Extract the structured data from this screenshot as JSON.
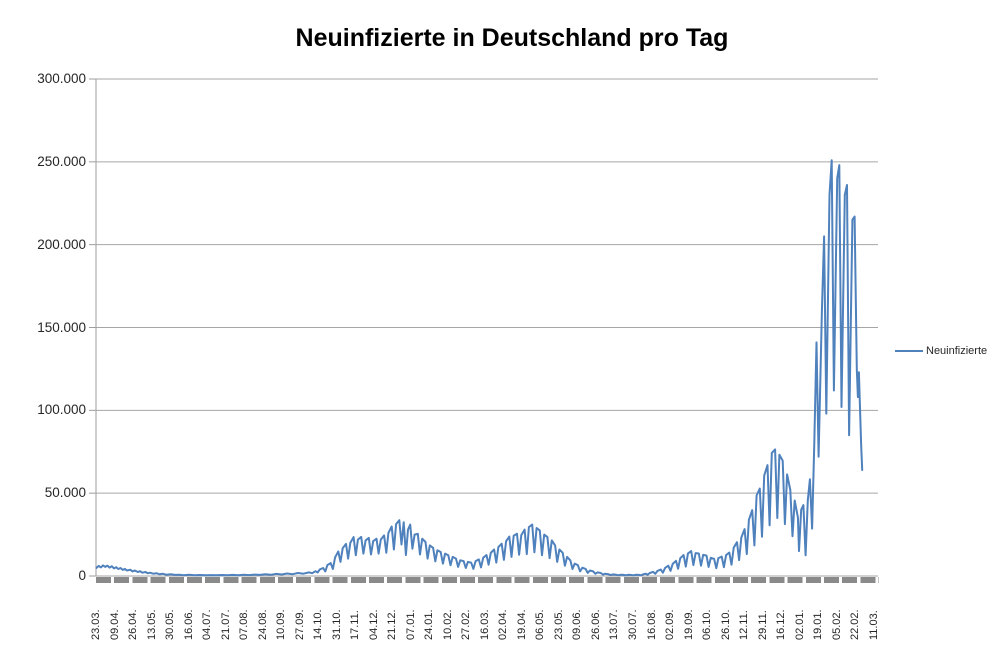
{
  "chart_data": {
    "type": "line",
    "title": "Neuinfizierte in Deutschland pro Tag",
    "legend": {
      "position": "right",
      "entries": [
        {
          "label": "Neuinfizierte",
          "color": "#4F81BD"
        }
      ]
    },
    "grid": "horizontal-only",
    "y_axis": {
      "min": 0,
      "max": 300000,
      "step": 50000,
      "tick_labels": [
        "0",
        "50.000",
        "100.000",
        "150.000",
        "200.000",
        "250.000",
        "300.000"
      ]
    },
    "x_axis": {
      "categories_total": 718,
      "label_every_n_categories": 17,
      "tick_labels": [
        "23.03.",
        "09.04.",
        "26.04.",
        "13.05.",
        "30.05.",
        "16.06.",
        "04.07.",
        "21.07.",
        "07.08.",
        "24.08.",
        "10.09.",
        "27.09.",
        "14.10.",
        "31.10.",
        "17.11.",
        "04.12.",
        "21.12.",
        "07.01.",
        "24.01.",
        "10.02.",
        "27.02.",
        "16.03.",
        "02.04.",
        "19.04.",
        "06.05.",
        "23.05.",
        "09.06.",
        "26.06.",
        "13.07.",
        "30.07.",
        "16.08.",
        "02.09.",
        "19.09.",
        "06.10.",
        "26.10.",
        "12.11.",
        "29.11.",
        "16.12.",
        "02.01.",
        "19.01.",
        "05.02.",
        "22.02.",
        "11.03."
      ]
    },
    "series": [
      {
        "name": "Neuinfizierte",
        "color": "#4F81BD",
        "points": [
          [
            0,
            4900
          ],
          [
            2,
            6100
          ],
          [
            4,
            5200
          ],
          [
            6,
            6400
          ],
          [
            8,
            5500
          ],
          [
            10,
            6300
          ],
          [
            12,
            5100
          ],
          [
            14,
            5900
          ],
          [
            16,
            4600
          ],
          [
            18,
            5300
          ],
          [
            20,
            4200
          ],
          [
            22,
            4800
          ],
          [
            24,
            3700
          ],
          [
            26,
            4300
          ],
          [
            28,
            3300
          ],
          [
            31,
            3800
          ],
          [
            33,
            2800
          ],
          [
            35,
            3300
          ],
          [
            38,
            2400
          ],
          [
            40,
            2900
          ],
          [
            42,
            2000
          ],
          [
            45,
            2400
          ],
          [
            47,
            1600
          ],
          [
            49,
            2000
          ],
          [
            52,
            1400
          ],
          [
            55,
            1700
          ],
          [
            58,
            1000
          ],
          [
            61,
            1300
          ],
          [
            64,
            800
          ],
          [
            68,
            1000
          ],
          [
            72,
            650
          ],
          [
            76,
            800
          ],
          [
            80,
            500
          ],
          [
            85,
            700
          ],
          [
            90,
            450
          ],
          [
            95,
            600
          ],
          [
            100,
            400
          ],
          [
            105,
            550
          ],
          [
            110,
            420
          ],
          [
            115,
            600
          ],
          [
            120,
            450
          ],
          [
            125,
            650
          ],
          [
            130,
            500
          ],
          [
            135,
            750
          ],
          [
            140,
            550
          ],
          [
            145,
            850
          ],
          [
            150,
            650
          ],
          [
            155,
            1000
          ],
          [
            160,
            750
          ],
          [
            165,
            1250
          ],
          [
            170,
            900
          ],
          [
            175,
            1500
          ],
          [
            180,
            1100
          ],
          [
            185,
            1800
          ],
          [
            190,
            1400
          ],
          [
            195,
            2200
          ],
          [
            198,
            1700
          ],
          [
            201,
            2900
          ],
          [
            203,
            2100
          ],
          [
            205,
            4000
          ],
          [
            208,
            4800
          ],
          [
            210,
            2800
          ],
          [
            212,
            6600
          ],
          [
            215,
            7800
          ],
          [
            217,
            4200
          ],
          [
            219,
            11300
          ],
          [
            222,
            14800
          ],
          [
            224,
            8500
          ],
          [
            226,
            16800
          ],
          [
            229,
            19400
          ],
          [
            231,
            10500
          ],
          [
            233,
            20000
          ],
          [
            236,
            23500
          ],
          [
            238,
            12500
          ],
          [
            240,
            22000
          ],
          [
            243,
            23600
          ],
          [
            245,
            13500
          ],
          [
            247,
            21500
          ],
          [
            250,
            23000
          ],
          [
            252,
            13000
          ],
          [
            254,
            21000
          ],
          [
            257,
            22500
          ],
          [
            259,
            13500
          ],
          [
            261,
            22000
          ],
          [
            264,
            24500
          ],
          [
            266,
            14000
          ],
          [
            268,
            26000
          ],
          [
            271,
            29900
          ],
          [
            273,
            16000
          ],
          [
            275,
            31300
          ],
          [
            278,
            33700
          ],
          [
            280,
            19000
          ],
          [
            282,
            32500
          ],
          [
            284,
            12700
          ],
          [
            286,
            28000
          ],
          [
            288,
            31000
          ],
          [
            290,
            16500
          ],
          [
            292,
            25000
          ],
          [
            295,
            25500
          ],
          [
            297,
            13000
          ],
          [
            299,
            22500
          ],
          [
            302,
            20500
          ],
          [
            304,
            10500
          ],
          [
            306,
            18500
          ],
          [
            309,
            17000
          ],
          [
            311,
            8800
          ],
          [
            313,
            15500
          ],
          [
            316,
            14500
          ],
          [
            318,
            7500
          ],
          [
            320,
            13500
          ],
          [
            323,
            12500
          ],
          [
            325,
            6500
          ],
          [
            327,
            11500
          ],
          [
            330,
            10500
          ],
          [
            332,
            5500
          ],
          [
            334,
            9500
          ],
          [
            337,
            9000
          ],
          [
            339,
            4800
          ],
          [
            341,
            8500
          ],
          [
            344,
            8000
          ],
          [
            346,
            4300
          ],
          [
            348,
            9000
          ],
          [
            351,
            10000
          ],
          [
            353,
            5200
          ],
          [
            355,
            11000
          ],
          [
            358,
            12700
          ],
          [
            360,
            6800
          ],
          [
            362,
            14000
          ],
          [
            365,
            16000
          ],
          [
            367,
            8100
          ],
          [
            369,
            17500
          ],
          [
            372,
            19500
          ],
          [
            374,
            9700
          ],
          [
            376,
            21000
          ],
          [
            379,
            23800
          ],
          [
            381,
            11500
          ],
          [
            383,
            24300
          ],
          [
            386,
            25500
          ],
          [
            388,
            12800
          ],
          [
            390,
            24700
          ],
          [
            393,
            28000
          ],
          [
            395,
            13200
          ],
          [
            397,
            29500
          ],
          [
            400,
            31100
          ],
          [
            402,
            14300
          ],
          [
            404,
            29000
          ],
          [
            407,
            27500
          ],
          [
            409,
            12500
          ],
          [
            411,
            25000
          ],
          [
            414,
            23500
          ],
          [
            416,
            10800
          ],
          [
            418,
            21500
          ],
          [
            421,
            18500
          ],
          [
            423,
            8500
          ],
          [
            425,
            16000
          ],
          [
            428,
            14000
          ],
          [
            430,
            6200
          ],
          [
            432,
            11500
          ],
          [
            435,
            9500
          ],
          [
            437,
            4200
          ],
          [
            439,
            7500
          ],
          [
            442,
            6500
          ],
          [
            444,
            2800
          ],
          [
            446,
            5000
          ],
          [
            449,
            4300
          ],
          [
            451,
            1900
          ],
          [
            453,
            3300
          ],
          [
            456,
            2800
          ],
          [
            458,
            1300
          ],
          [
            460,
            2200
          ],
          [
            463,
            1800
          ],
          [
            465,
            850
          ],
          [
            467,
            1400
          ],
          [
            470,
            1100
          ],
          [
            472,
            550
          ],
          [
            474,
            950
          ],
          [
            477,
            800
          ],
          [
            479,
            400
          ],
          [
            481,
            750
          ],
          [
            484,
            650
          ],
          [
            486,
            350
          ],
          [
            488,
            700
          ],
          [
            491,
            600
          ],
          [
            493,
            350
          ],
          [
            495,
            700
          ],
          [
            498,
            650
          ],
          [
            500,
            400
          ],
          [
            502,
            1000
          ],
          [
            504,
            1400
          ],
          [
            506,
            800
          ],
          [
            508,
            1800
          ],
          [
            511,
            2500
          ],
          [
            513,
            1300
          ],
          [
            515,
            3100
          ],
          [
            518,
            3900
          ],
          [
            520,
            2000
          ],
          [
            522,
            4900
          ],
          [
            525,
            6200
          ],
          [
            527,
            3100
          ],
          [
            529,
            7300
          ],
          [
            532,
            9200
          ],
          [
            534,
            4400
          ],
          [
            536,
            10800
          ],
          [
            539,
            12600
          ],
          [
            541,
            5700
          ],
          [
            543,
            13500
          ],
          [
            546,
            15000
          ],
          [
            548,
            6600
          ],
          [
            550,
            13800
          ],
          [
            553,
            13600
          ],
          [
            555,
            6200
          ],
          [
            557,
            12800
          ],
          [
            560,
            12300
          ],
          [
            562,
            5500
          ],
          [
            564,
            11000
          ],
          [
            567,
            10400
          ],
          [
            569,
            4700
          ],
          [
            571,
            10800
          ],
          [
            574,
            11700
          ],
          [
            576,
            5300
          ],
          [
            578,
            12600
          ],
          [
            581,
            14200
          ],
          [
            583,
            6800
          ],
          [
            585,
            17100
          ],
          [
            588,
            20400
          ],
          [
            590,
            9600
          ],
          [
            592,
            23200
          ],
          [
            595,
            28300
          ],
          [
            597,
            13200
          ],
          [
            599,
            33900
          ],
          [
            602,
            39700
          ],
          [
            604,
            18500
          ],
          [
            606,
            48600
          ],
          [
            609,
            52800
          ],
          [
            611,
            23700
          ],
          [
            613,
            60600
          ],
          [
            616,
            66900
          ],
          [
            618,
            30600
          ],
          [
            620,
            74300
          ],
          [
            623,
            76400
          ],
          [
            625,
            35000
          ],
          [
            627,
            73200
          ],
          [
            630,
            69600
          ],
          [
            632,
            31300
          ],
          [
            634,
            61300
          ],
          [
            637,
            52000
          ],
          [
            639,
            24000
          ],
          [
            641,
            45600
          ],
          [
            644,
            35400
          ],
          [
            645,
            15000
          ],
          [
            647,
            40000
          ],
          [
            649,
            42800
          ],
          [
            651,
            12500
          ],
          [
            653,
            45700
          ],
          [
            655,
            58400
          ],
          [
            657,
            28600
          ],
          [
            659,
            80400
          ],
          [
            661,
            141000
          ],
          [
            663,
            72000
          ],
          [
            666,
            160000
          ],
          [
            668,
            205000
          ],
          [
            670,
            98000
          ],
          [
            673,
            230000
          ],
          [
            675,
            251000
          ],
          [
            677,
            112000
          ],
          [
            680,
            240000
          ],
          [
            682,
            248000
          ],
          [
            684,
            102000
          ],
          [
            687,
            230000
          ],
          [
            689,
            236000
          ],
          [
            691,
            85000
          ],
          [
            694,
            215000
          ],
          [
            696,
            217000
          ],
          [
            698,
            125000
          ],
          [
            699,
            108000
          ],
          [
            700,
            123000
          ],
          [
            702,
            80000
          ],
          [
            703,
            64000
          ]
        ]
      }
    ],
    "colors": {
      "series": "#4F81BD",
      "gridline": "#A6A6A6",
      "axis": "#9E9E9E",
      "tick_band": "#8A8A8A",
      "axis_text": "#262626",
      "title_text": "#000000"
    }
  }
}
